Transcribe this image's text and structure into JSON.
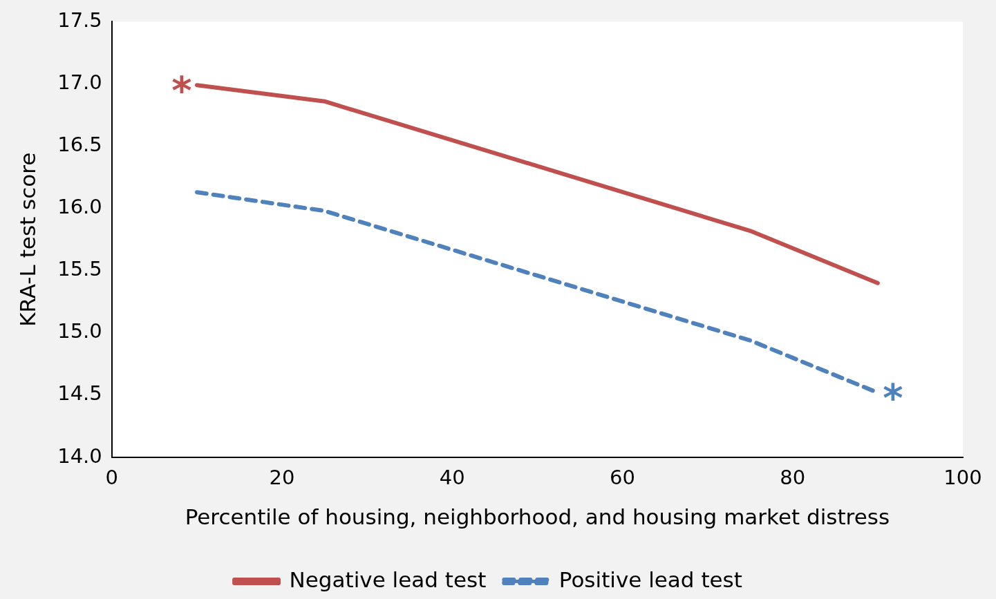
{
  "chart_data": {
    "type": "line",
    "xlabel": "Percentile of housing, neighborhood, and housing market distress",
    "ylabel": "KRA-L test score",
    "x": [
      10,
      25,
      75,
      90
    ],
    "series": [
      {
        "name": "Negative lead test",
        "color": "#c0504d",
        "line_style": "solid",
        "values": [
          16.99,
          16.86,
          15.82,
          15.4
        ]
      },
      {
        "name": "Positive lead test",
        "color": "#4f81bd",
        "line_style": "dashed",
        "values": [
          16.13,
          15.98,
          14.94,
          14.52
        ]
      }
    ],
    "annotations": [
      {
        "text": "*",
        "x": 10,
        "y": 16.99
      },
      {
        "text": "*",
        "x": 90,
        "y": 14.52
      }
    ],
    "xlim": [
      0,
      100
    ],
    "xticks": [
      0,
      20,
      40,
      60,
      80,
      100
    ],
    "ylim": [
      14.0,
      17.5
    ],
    "yticks": [
      {
        "value": 14.0,
        "label": "14.0"
      },
      {
        "value": 14.5,
        "label": "14.5"
      },
      {
        "value": 15.0,
        "label": "15.0"
      },
      {
        "value": 15.5,
        "label": "15.5"
      },
      {
        "value": 16.0,
        "label": "16.0"
      },
      {
        "value": 16.5,
        "label": "16.5"
      },
      {
        "value": 17.0,
        "label": "17.0"
      },
      {
        "value": 17.5,
        "label": "17.5"
      }
    ],
    "grid": false,
    "legend": "bottom",
    "marker": "none"
  }
}
